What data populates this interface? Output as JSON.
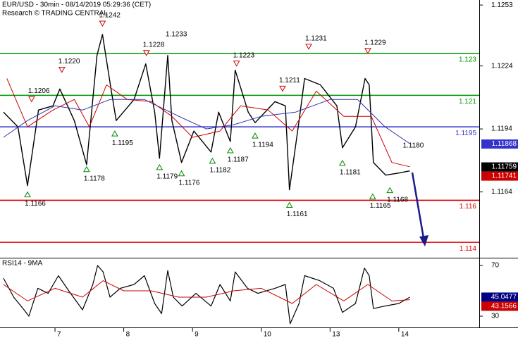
{
  "chart_data": [
    {
      "type": "line",
      "title": "EUR/USD - 30min - 08/14/2019 05:29:36 (CET)",
      "subtitle": "Research © TRADING CENTRAL",
      "xlim": [
        0.2,
        7.17
      ],
      "ylim": [
        1.1133,
        1.12554
      ],
      "yticks": [
        1.1253,
        1.1224,
        1.1194,
        1.1164
      ],
      "grid": false,
      "series": [
        {
          "color": "#000000",
          "width": 1.4,
          "x": [
            0.25,
            0.46,
            0.6,
            0.76,
            0.97,
            1.07,
            1.28,
            1.46,
            1.61,
            1.69,
            1.82,
            1.89,
            2.15,
            2.32,
            2.45,
            2.52,
            2.64,
            2.7,
            2.84,
            3.02,
            3.27,
            3.38,
            3.55,
            3.62,
            3.81,
            3.91,
            4.2,
            4.35,
            4.41,
            4.55,
            4.63,
            4.86,
            5.1,
            5.18,
            5.37,
            5.51,
            5.57,
            5.63,
            5.81,
            6.0,
            6.16
          ],
          "values": [
            1.1202,
            1.1195,
            1.1167,
            1.1203,
            1.1205,
            1.1213,
            1.1198,
            1.1177,
            1.1229,
            1.1239,
            1.1212,
            1.1198,
            1.1208,
            1.1225,
            1.1202,
            1.118,
            1.1229,
            1.1198,
            1.1178,
            1.1193,
            1.1183,
            1.1202,
            1.1188,
            1.1222,
            1.1202,
            1.1197,
            1.1207,
            1.1205,
            1.1165,
            1.1198,
            1.1218,
            1.1215,
            1.1205,
            1.1185,
            1.1195,
            1.1218,
            1.1215,
            1.1178,
            1.1172,
            1.1173,
            1.1174
          ]
        },
        {
          "color": "#cc0000",
          "width": 1,
          "x": [
            0.3,
            0.6,
            0.97,
            1.28,
            1.5,
            1.75,
            2.05,
            2.4,
            2.7,
            3.0,
            3.4,
            3.7,
            4.1,
            4.45,
            4.8,
            5.2,
            5.6,
            5.9,
            6.16
          ],
          "values": [
            1.1218,
            1.1195,
            1.1203,
            1.1208,
            1.1195,
            1.1215,
            1.1208,
            1.1207,
            1.12,
            1.119,
            1.1193,
            1.1205,
            1.1203,
            1.1193,
            1.1212,
            1.12,
            1.12,
            1.1178,
            1.1176
          ]
        },
        {
          "color": "#3333aa",
          "width": 1,
          "x": [
            0.25,
            0.6,
            1.0,
            1.4,
            1.8,
            2.3,
            2.8,
            3.2,
            3.6,
            4.0,
            4.5,
            5.0,
            5.4,
            5.8,
            6.16
          ],
          "values": [
            1.119,
            1.1198,
            1.1205,
            1.1203,
            1.1208,
            1.1208,
            1.12,
            1.1194,
            1.1196,
            1.12,
            1.1202,
            1.1208,
            1.1208,
            1.1195,
            1.1187
          ]
        }
      ],
      "levels": [
        {
          "value": 1.123,
          "color": "#009900"
        },
        {
          "value": 1.121,
          "color": "#009900"
        },
        {
          "value": 1.1195,
          "color": "#3333cc"
        },
        {
          "value": 1.116,
          "color": "#dd0000"
        },
        {
          "value": 1.114,
          "color": "#dd0000"
        }
      ],
      "annotations": [
        {
          "x": 0.66,
          "value": 1.1206,
          "kind": "high"
        },
        {
          "x": 1.1,
          "value": 1.122,
          "label": "1.1220",
          "kind": "high"
        },
        {
          "x": 1.69,
          "value": 1.1242,
          "kind": "high"
        },
        {
          "x": 2.33,
          "value": 1.1228,
          "kind": "high"
        },
        {
          "x": 2.71,
          "value": 1.1233,
          "kind": "label"
        },
        {
          "x": 3.64,
          "value": 1.1223,
          "kind": "high"
        },
        {
          "x": 4.31,
          "value": 1.1211,
          "kind": "high"
        },
        {
          "x": 4.69,
          "value": 1.1231,
          "kind": "high"
        },
        {
          "x": 5.55,
          "value": 1.1229,
          "kind": "high"
        },
        {
          "x": 0.6,
          "value": 1.1166,
          "kind": "low"
        },
        {
          "x": 1.46,
          "value": 1.1178,
          "kind": "low"
        },
        {
          "x": 1.87,
          "value": 1.1195,
          "kind": "low"
        },
        {
          "x": 2.52,
          "value": 1.1179,
          "kind": "low"
        },
        {
          "x": 2.84,
          "value": 1.1176,
          "kind": "low"
        },
        {
          "x": 3.29,
          "value": 1.1182,
          "kind": "low"
        },
        {
          "x": 3.55,
          "value": 1.1187,
          "kind": "low"
        },
        {
          "x": 3.91,
          "value": 1.1194,
          "kind": "low"
        },
        {
          "x": 4.41,
          "value": 1.1161,
          "kind": "low"
        },
        {
          "x": 5.18,
          "value": 1.1181,
          "kind": "low"
        },
        {
          "x": 5.62,
          "value": 1.1165,
          "kind": "low"
        },
        {
          "x": 5.87,
          "value": 1.1168,
          "kind": "low"
        },
        {
          "x": 6.16,
          "value": 1.118,
          "label": "1.1180",
          "kind": "label"
        }
      ],
      "badges": [
        {
          "value": 1.11868,
          "color": "#3333cc"
        },
        {
          "value": 1.11759,
          "color": "#000000"
        },
        {
          "value": 1.11741,
          "color": "#cc0000"
        }
      ]
    },
    {
      "type": "line",
      "title": "RSI14 - 9MA",
      "xlim": [
        0.2,
        7.17
      ],
      "ylim": [
        21.1,
        75.6
      ],
      "yticks": [
        70,
        30
      ],
      "xticks": [
        {
          "value": 1,
          "label": "7"
        },
        {
          "value": 2,
          "label": "8"
        },
        {
          "value": 3,
          "label": "9"
        },
        {
          "value": 4,
          "label": "10"
        },
        {
          "value": 5,
          "label": "13"
        },
        {
          "value": 6,
          "label": "14"
        }
      ],
      "series": [
        {
          "color": "#000000",
          "width": 1.2,
          "x": [
            0.25,
            0.4,
            0.55,
            0.62,
            0.75,
            0.9,
            1.05,
            1.2,
            1.4,
            1.55,
            1.62,
            1.7,
            1.8,
            1.95,
            2.15,
            2.3,
            2.45,
            2.55,
            2.64,
            2.72,
            2.85,
            3.05,
            3.27,
            3.4,
            3.55,
            3.62,
            3.8,
            3.95,
            4.2,
            4.35,
            4.42,
            4.55,
            4.63,
            4.85,
            5.05,
            5.18,
            5.37,
            5.5,
            5.57,
            5.63,
            5.8,
            6.0,
            6.16
          ],
          "values": [
            60,
            45,
            35,
            30,
            52,
            48,
            62,
            50,
            35,
            55,
            70,
            65,
            45,
            52,
            55,
            62,
            40,
            32,
            66,
            45,
            38,
            48,
            38,
            55,
            42,
            65,
            52,
            48,
            52,
            55,
            24,
            40,
            62,
            58,
            52,
            33,
            40,
            68,
            62,
            36,
            38,
            40,
            45
          ]
        },
        {
          "color": "#cc0000",
          "width": 1,
          "x": [
            0.25,
            0.6,
            1.0,
            1.4,
            1.7,
            2.0,
            2.4,
            2.8,
            3.2,
            3.6,
            4.0,
            4.45,
            4.8,
            5.2,
            5.55,
            5.9,
            6.16
          ],
          "values": [
            55,
            42,
            52,
            45,
            58,
            50,
            50,
            45,
            45,
            50,
            52,
            40,
            55,
            42,
            55,
            42,
            43
          ]
        }
      ],
      "badges": [
        {
          "value": 45.0477,
          "color": "#000080"
        },
        {
          "value": 43.1566,
          "color": "#cc0000"
        }
      ]
    }
  ]
}
